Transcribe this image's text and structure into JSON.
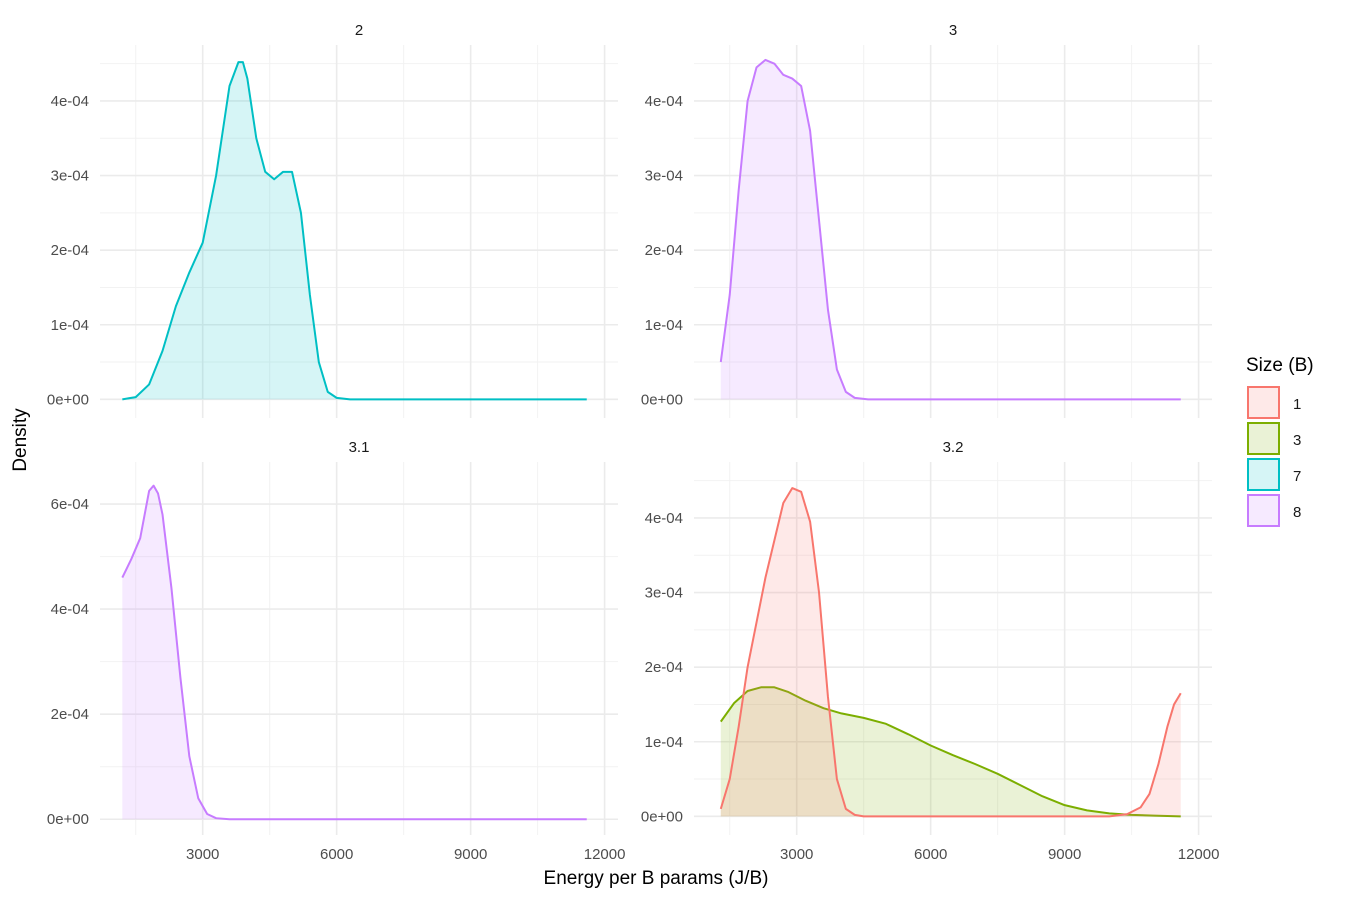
{
  "chart_data": {
    "type": "area",
    "xlabel": "Energy per B params (J/B)",
    "ylabel": "Density",
    "x_ticks": [
      3000,
      6000,
      9000,
      12000
    ],
    "x_tick_labels": [
      "3000",
      "6000",
      "9000",
      "12000"
    ],
    "xlim": [
      700,
      12300
    ],
    "legend": {
      "title": "Size (B)",
      "placement": "right",
      "entries": [
        {
          "label": "1",
          "color": "#F8766D"
        },
        {
          "label": "3",
          "color": "#7CAE00"
        },
        {
          "label": "7",
          "color": "#00BFC4"
        },
        {
          "label": "8",
          "color": "#C77CFF"
        }
      ]
    },
    "panels": [
      {
        "title": "2",
        "ylim": [
          -2.5e-05,
          0.000475
        ],
        "y_ticks": [
          0,
          0.0001,
          0.0002,
          0.0003,
          0.0004
        ],
        "y_tick_labels": [
          "0e+00",
          "1e-04",
          "2e-04",
          "3e-04",
          "4e-04"
        ],
        "series": [
          {
            "size": "7",
            "color": "#00BFC4",
            "x": [
              1200,
              1500,
              1800,
              2100,
              2400,
              2700,
              3000,
              3300,
              3600,
              3800,
              3900,
              4000,
              4200,
              4400,
              4600,
              4800,
              5000,
              5200,
              5400,
              5600,
              5800,
              6000,
              6300,
              6600,
              9000,
              11600
            ],
            "y": [
              0,
              3e-06,
              2e-05,
              6.5e-05,
              0.000125,
              0.00017,
              0.00021,
              0.0003,
              0.00042,
              0.000452,
              0.000452,
              0.00043,
              0.00035,
              0.000305,
              0.000295,
              0.000305,
              0.000305,
              0.00025,
              0.00014,
              5e-05,
              1e-05,
              2e-06,
              0,
              0,
              0,
              0
            ]
          }
        ]
      },
      {
        "title": "3",
        "ylim": [
          -2.5e-05,
          0.000475
        ],
        "y_ticks": [
          0,
          0.0001,
          0.0002,
          0.0003,
          0.0004
        ],
        "y_tick_labels": [
          "0e+00",
          "1e-04",
          "2e-04",
          "3e-04",
          "4e-04"
        ],
        "series": [
          {
            "size": "8",
            "color": "#C77CFF",
            "x": [
              1300,
              1500,
              1700,
              1900,
              2100,
              2300,
              2500,
              2700,
              2900,
              3100,
              3300,
              3500,
              3700,
              3900,
              4100,
              4300,
              4600,
              5000,
              8000,
              11600
            ],
            "y": [
              5e-05,
              0.00014,
              0.00028,
              0.0004,
              0.000445,
              0.000455,
              0.00045,
              0.000435,
              0.00043,
              0.00042,
              0.00036,
              0.00024,
              0.00012,
              4e-05,
              1e-05,
              2e-06,
              0,
              0,
              0,
              0
            ]
          }
        ]
      },
      {
        "title": "3.1",
        "ylim": [
          -3e-05,
          0.00068
        ],
        "y_ticks": [
          0,
          0.0002,
          0.0004,
          0.0006
        ],
        "y_tick_labels": [
          "0e+00",
          "2e-04",
          "4e-04",
          "6e-04"
        ],
        "series": [
          {
            "size": "8",
            "color": "#C77CFF",
            "x": [
              1200,
              1400,
              1600,
              1700,
              1800,
              1900,
              2000,
              2100,
              2300,
              2500,
              2700,
              2900,
              3100,
              3300,
              3600,
              4000,
              8000,
              11600
            ],
            "y": [
              0.00046,
              0.000495,
              0.000535,
              0.00058,
              0.000625,
              0.000635,
              0.00062,
              0.00058,
              0.00044,
              0.00027,
              0.00012,
              4e-05,
              1e-05,
              2e-06,
              0,
              0,
              0,
              0
            ]
          }
        ]
      },
      {
        "title": "3.2",
        "ylim": [
          -2.5e-05,
          0.000475
        ],
        "y_ticks": [
          0,
          0.0001,
          0.0002,
          0.0003,
          0.0004
        ],
        "y_tick_labels": [
          "0e+00",
          "1e-04",
          "2e-04",
          "3e-04",
          "4e-04"
        ],
        "series": [
          {
            "size": "3",
            "color": "#7CAE00",
            "x": [
              1300,
              1600,
              1900,
              2200,
              2500,
              2800,
              3200,
              3600,
              4000,
              4500,
              5000,
              5500,
              6000,
              6500,
              7000,
              7500,
              8000,
              8500,
              9000,
              9500,
              10000,
              10500,
              11000,
              11600
            ],
            "y": [
              0.000127,
              0.000152,
              0.000168,
              0.000173,
              0.000173,
              0.000167,
              0.000155,
              0.000145,
              0.000138,
              0.000132,
              0.000124,
              0.00011,
              9.5e-05,
              8.2e-05,
              7e-05,
              5.7e-05,
              4.2e-05,
              2.7e-05,
              1.5e-05,
              8e-06,
              4e-06,
              2e-06,
              1e-06,
              0
            ]
          },
          {
            "size": "1",
            "color": "#F8766D",
            "x": [
              1300,
              1500,
              1700,
              1900,
              2100,
              2300,
              2500,
              2700,
              2900,
              3100,
              3300,
              3500,
              3700,
              3900,
              4100,
              4300,
              4500,
              5000,
              9500,
              10000,
              10400,
              10700,
              10900,
              11100,
              11300,
              11450,
              11600
            ],
            "y": [
              1e-05,
              5e-05,
              0.00012,
              0.0002,
              0.00026,
              0.00032,
              0.00037,
              0.00042,
              0.00044,
              0.000435,
              0.000395,
              0.0003,
              0.00016,
              5e-05,
              1e-05,
              2e-06,
              0,
              0,
              0,
              0,
              3e-06,
              1.2e-05,
              3e-05,
              7e-05,
              0.00012,
              0.00015,
              0.000165
            ]
          }
        ]
      }
    ]
  }
}
